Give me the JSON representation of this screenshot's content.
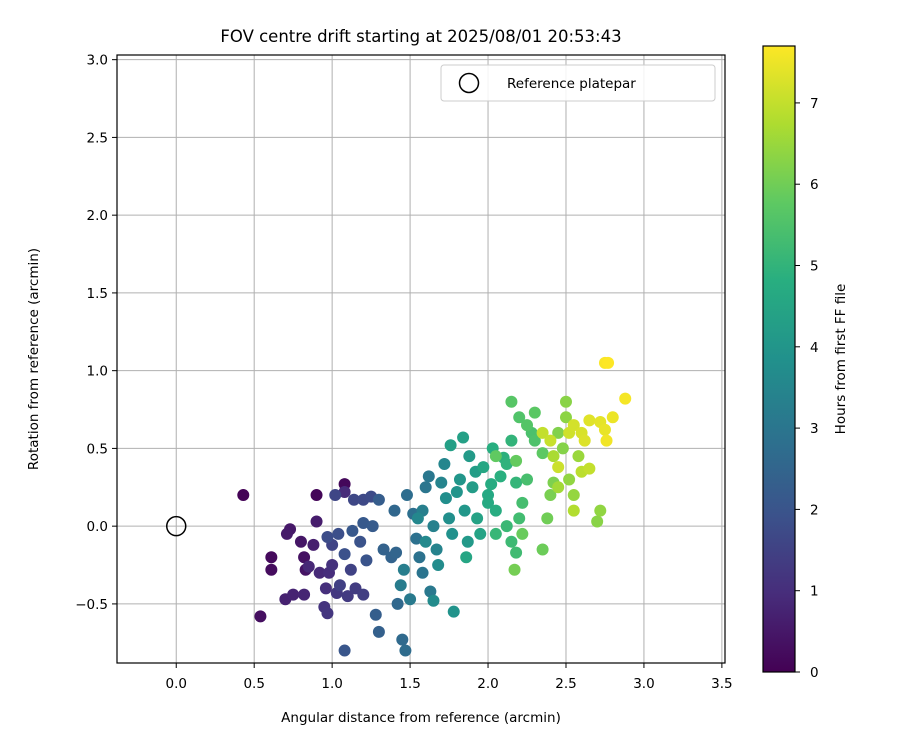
{
  "chart_data": {
    "type": "scatter",
    "title": "FOV centre drift starting at 2025/08/01 20:53:43",
    "xlabel": "Angular distance from reference (arcmin)",
    "ylabel": "Rotation from reference (arcmin)",
    "xlim": [
      -0.38,
      3.52
    ],
    "ylim": [
      -0.88,
      3.03
    ],
    "xticks": [
      0.0,
      0.5,
      1.0,
      1.5,
      2.0,
      2.5,
      3.0,
      3.5
    ],
    "xtick_labels": [
      "0.0",
      "0.5",
      "1.0",
      "1.5",
      "2.0",
      "2.5",
      "3.0",
      "3.5"
    ],
    "yticks": [
      -0.5,
      0.0,
      0.5,
      1.0,
      1.5,
      2.0,
      2.5,
      3.0
    ],
    "ytick_labels": [
      "−0.5",
      "0.0",
      "0.5",
      "1.0",
      "1.5",
      "2.0",
      "2.5",
      "3.0"
    ],
    "grid": true,
    "colormap": "viridis",
    "colorbar": {
      "label": "Hours from first FF file",
      "min": 0,
      "max": 7.7,
      "ticks": [
        0,
        1,
        2,
        3,
        4,
        5,
        6,
        7
      ],
      "tick_labels": [
        "0",
        "1",
        "2",
        "3",
        "4",
        "5",
        "6",
        "7"
      ]
    },
    "legend": {
      "position": "top-right",
      "entries": [
        {
          "label": "Reference platepar",
          "marker": "hollow-circle"
        }
      ]
    },
    "reference_point": {
      "x": 0.0,
      "y": 0.0
    },
    "series": [
      {
        "points_xyc": [
          [
            0.43,
            0.2,
            0.05
          ],
          [
            0.9,
            0.2,
            0.1
          ],
          [
            1.08,
            0.27,
            0.15
          ],
          [
            0.61,
            -0.2,
            0.2
          ],
          [
            0.61,
            -0.28,
            0.25
          ],
          [
            0.54,
            -0.58,
            0.3
          ],
          [
            0.82,
            -0.2,
            0.35
          ],
          [
            0.83,
            -0.28,
            0.4
          ],
          [
            0.8,
            -0.1,
            0.45
          ],
          [
            0.73,
            -0.02,
            0.5
          ],
          [
            0.71,
            -0.05,
            0.55
          ],
          [
            0.9,
            0.03,
            0.6
          ],
          [
            0.88,
            -0.12,
            0.65
          ],
          [
            0.7,
            -0.47,
            0.7
          ],
          [
            0.75,
            -0.44,
            0.75
          ],
          [
            0.82,
            -0.44,
            0.8
          ],
          [
            0.85,
            -0.26,
            0.85
          ],
          [
            0.92,
            -0.3,
            0.9
          ],
          [
            1.08,
            0.22,
            0.95
          ],
          [
            0.98,
            -0.3,
            1.0
          ],
          [
            0.96,
            -0.4,
            1.05
          ],
          [
            1.0,
            -0.25,
            1.1
          ],
          [
            0.95,
            -0.52,
            1.15
          ],
          [
            0.97,
            -0.56,
            1.2
          ],
          [
            1.03,
            -0.43,
            1.25
          ],
          [
            1.1,
            -0.45,
            1.3
          ],
          [
            1.15,
            -0.4,
            1.35
          ],
          [
            1.2,
            -0.44,
            1.4
          ],
          [
            1.05,
            -0.38,
            1.45
          ],
          [
            1.12,
            -0.28,
            1.5
          ],
          [
            1.0,
            -0.12,
            1.55
          ],
          [
            1.02,
            0.2,
            1.6
          ],
          [
            1.14,
            0.17,
            1.65
          ],
          [
            1.2,
            0.17,
            1.7
          ],
          [
            1.25,
            0.19,
            1.75
          ],
          [
            0.97,
            -0.07,
            1.8
          ],
          [
            1.04,
            -0.05,
            1.85
          ],
          [
            1.08,
            -0.18,
            1.9
          ],
          [
            1.18,
            -0.1,
            1.95
          ],
          [
            1.22,
            -0.22,
            2.0
          ],
          [
            1.08,
            -0.8,
            2.05
          ],
          [
            1.13,
            -0.03,
            2.1
          ],
          [
            1.2,
            0.02,
            2.15
          ],
          [
            1.26,
            0.0,
            2.2
          ],
          [
            1.3,
            0.17,
            2.25
          ],
          [
            1.28,
            -0.57,
            2.3
          ],
          [
            1.3,
            -0.68,
            2.35
          ],
          [
            1.33,
            -0.15,
            2.4
          ],
          [
            1.38,
            -0.2,
            2.45
          ],
          [
            1.41,
            -0.17,
            2.5
          ],
          [
            1.4,
            0.1,
            2.55
          ],
          [
            1.42,
            -0.5,
            2.6
          ],
          [
            1.45,
            -0.73,
            2.65
          ],
          [
            1.47,
            -0.8,
            2.7
          ],
          [
            1.48,
            0.2,
            2.75
          ],
          [
            1.52,
            0.08,
            2.8
          ],
          [
            1.54,
            -0.08,
            2.85
          ],
          [
            1.56,
            -0.2,
            2.9
          ],
          [
            1.58,
            -0.3,
            2.95
          ],
          [
            1.6,
            0.25,
            3.0
          ],
          [
            1.62,
            0.32,
            3.05
          ],
          [
            1.63,
            -0.42,
            3.1
          ],
          [
            1.5,
            -0.47,
            3.15
          ],
          [
            1.44,
            -0.38,
            3.2
          ],
          [
            1.46,
            -0.28,
            3.25
          ],
          [
            1.58,
            0.1,
            3.3
          ],
          [
            1.65,
            0.0,
            3.35
          ],
          [
            1.67,
            -0.15,
            3.4
          ],
          [
            1.7,
            0.28,
            3.45
          ],
          [
            1.72,
            0.4,
            3.5
          ],
          [
            1.55,
            0.05,
            3.55
          ],
          [
            1.6,
            -0.1,
            3.6
          ],
          [
            1.65,
            -0.48,
            3.65
          ],
          [
            1.68,
            -0.25,
            3.7
          ],
          [
            1.73,
            0.18,
            3.75
          ],
          [
            1.75,
            0.05,
            3.8
          ],
          [
            1.77,
            -0.05,
            3.85
          ],
          [
            1.78,
            -0.55,
            3.9
          ],
          [
            1.8,
            0.22,
            3.95
          ],
          [
            1.82,
            0.3,
            4.0
          ],
          [
            1.85,
            0.1,
            4.05
          ],
          [
            1.87,
            -0.1,
            4.1
          ],
          [
            1.88,
            0.45,
            4.15
          ],
          [
            1.9,
            0.25,
            4.2
          ],
          [
            1.92,
            0.35,
            4.25
          ],
          [
            1.76,
            0.52,
            4.3
          ],
          [
            1.84,
            0.57,
            4.35
          ],
          [
            1.93,
            0.05,
            4.4
          ],
          [
            1.95,
            -0.05,
            4.45
          ],
          [
            1.86,
            -0.2,
            4.5
          ],
          [
            1.97,
            0.38,
            4.55
          ],
          [
            2.0,
            0.2,
            4.6
          ],
          [
            2.0,
            0.15,
            4.65
          ],
          [
            2.02,
            0.27,
            4.7
          ],
          [
            2.05,
            0.1,
            4.75
          ],
          [
            2.03,
            0.5,
            4.8
          ],
          [
            2.08,
            0.32,
            4.85
          ],
          [
            2.1,
            0.44,
            4.9
          ],
          [
            2.12,
            0.4,
            4.95
          ],
          [
            2.15,
            0.55,
            5.0
          ],
          [
            2.18,
            0.28,
            5.05
          ],
          [
            2.05,
            -0.05,
            5.1
          ],
          [
            2.12,
            0.0,
            5.15
          ],
          [
            2.15,
            -0.1,
            5.2
          ],
          [
            2.18,
            -0.17,
            5.25
          ],
          [
            2.2,
            0.05,
            5.3
          ],
          [
            2.22,
            0.15,
            5.35
          ],
          [
            2.25,
            0.3,
            5.4
          ],
          [
            2.28,
            0.6,
            5.45
          ],
          [
            2.3,
            0.55,
            5.5
          ],
          [
            2.2,
            0.7,
            5.55
          ],
          [
            2.25,
            0.65,
            5.6
          ],
          [
            2.15,
            0.8,
            5.65
          ],
          [
            2.3,
            0.73,
            5.7
          ],
          [
            2.35,
            0.47,
            5.75
          ],
          [
            2.05,
            0.45,
            5.8
          ],
          [
            2.18,
            0.42,
            5.85
          ],
          [
            2.22,
            -0.05,
            5.9
          ],
          [
            2.35,
            -0.15,
            5.95
          ],
          [
            2.38,
            0.05,
            6.0
          ],
          [
            2.17,
            -0.28,
            6.05
          ],
          [
            2.4,
            0.2,
            6.1
          ],
          [
            2.42,
            0.28,
            6.15
          ],
          [
            2.45,
            0.6,
            6.2
          ],
          [
            2.48,
            0.5,
            6.25
          ],
          [
            2.5,
            0.8,
            6.3
          ],
          [
            2.5,
            0.7,
            6.35
          ],
          [
            2.52,
            0.3,
            6.4
          ],
          [
            2.55,
            0.2,
            6.45
          ],
          [
            2.58,
            0.45,
            6.5
          ],
          [
            2.45,
            0.25,
            6.6
          ],
          [
            2.42,
            0.45,
            6.7
          ],
          [
            2.55,
            0.1,
            6.8
          ],
          [
            2.6,
            0.35,
            6.9
          ],
          [
            2.65,
            0.37,
            7.0
          ],
          [
            2.7,
            0.03,
            6.3
          ],
          [
            2.72,
            0.1,
            6.4
          ],
          [
            2.35,
            0.6,
            7.0
          ],
          [
            2.4,
            0.55,
            7.05
          ],
          [
            2.45,
            0.38,
            7.1
          ],
          [
            2.52,
            0.6,
            7.15
          ],
          [
            2.55,
            0.65,
            7.2
          ],
          [
            2.6,
            0.6,
            7.25
          ],
          [
            2.62,
            0.55,
            7.3
          ],
          [
            2.65,
            0.68,
            7.35
          ],
          [
            2.72,
            0.67,
            7.4
          ],
          [
            2.75,
            0.62,
            7.45
          ],
          [
            2.8,
            0.7,
            7.5
          ],
          [
            2.76,
            0.55,
            7.55
          ],
          [
            2.88,
            0.82,
            7.6
          ],
          [
            2.75,
            1.05,
            7.65
          ],
          [
            2.77,
            1.05,
            7.7
          ]
        ]
      }
    ]
  }
}
